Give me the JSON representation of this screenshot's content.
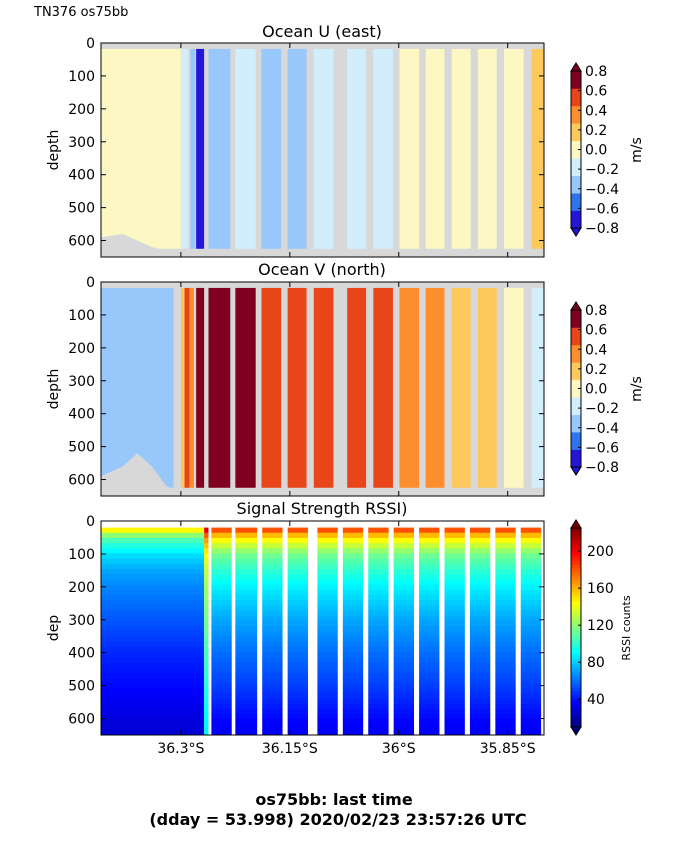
{
  "figure": {
    "corner_label": "TN376 os75bb",
    "footer_line1": "os75bb: last time",
    "footer_line2": "(dday = 53.998) 2020/02/23 23:57:26 UTC"
  },
  "chart_data": [
    {
      "type": "heatmap",
      "title": "Ocean U (east)",
      "ylabel": "depth",
      "ylim": [
        650,
        0
      ],
      "yticks": [
        0,
        100,
        200,
        300,
        400,
        500,
        600
      ],
      "ytick_labels": [
        "0",
        "100",
        "200",
        "300",
        "400",
        "500",
        "600"
      ],
      "xlim": [
        36.41,
        35.8
      ],
      "xticks": [
        36.3,
        36.15,
        36.0,
        35.85
      ],
      "xtick_labels": [],
      "colorbar": {
        "label": "m/s",
        "ticks": [
          0.8,
          0.6,
          0.4,
          0.2,
          0.0,
          -0.2,
          -0.4,
          -0.6,
          -0.8
        ],
        "tick_labels": [
          "0.8",
          "0.6",
          "0.4",
          "0.2",
          "0.0",
          "−0.2",
          "−0.4",
          "−0.6",
          "−0.8"
        ],
        "range": [
          -0.8,
          0.8
        ],
        "levels": [
          "#2415d8",
          "#2f74ef",
          "#98c8fb",
          "#d2eefd",
          "#fdf7c4",
          "#fdc95c",
          "#fc8e2e",
          "#e8451a",
          "#800020"
        ]
      },
      "columns": [
        {
          "lat_start": 36.41,
          "lat_end": 36.3,
          "value": 0.08
        },
        {
          "lat_start": 36.3,
          "lat_end": 36.29,
          "value": -0.12
        },
        {
          "lat_start": 36.287,
          "lat_end": 36.28,
          "value": -0.35
        },
        {
          "lat_start": 36.279,
          "lat_end": 36.268,
          "value": -0.75
        },
        {
          "lat_start": 36.262,
          "lat_end": 36.232,
          "value": -0.48
        },
        {
          "lat_start": 36.225,
          "lat_end": 36.197,
          "value": -0.3
        },
        {
          "lat_start": 36.189,
          "lat_end": 36.162,
          "value": -0.32
        },
        {
          "lat_start": 36.153,
          "lat_end": 36.127,
          "value": -0.33
        },
        {
          "lat_start": 36.117,
          "lat_end": 36.09,
          "value": -0.14
        },
        {
          "lat_start": 36.071,
          "lat_end": 36.045,
          "value": -0.13
        },
        {
          "lat_start": 36.035,
          "lat_end": 36.008,
          "value": -0.11
        },
        {
          "lat_start": 35.999,
          "lat_end": 35.972,
          "value": -0.09
        },
        {
          "lat_start": 35.963,
          "lat_end": 35.937,
          "value": -0.06
        },
        {
          "lat_start": 35.927,
          "lat_end": 35.901,
          "value": 0.05
        },
        {
          "lat_start": 35.891,
          "lat_end": 35.865,
          "value": 0.06
        },
        {
          "lat_start": 35.855,
          "lat_end": 35.828,
          "value": 0.08
        },
        {
          "lat_start": 35.817,
          "lat_end": 35.8,
          "value": 0.25
        }
      ]
    },
    {
      "type": "heatmap",
      "title": "Ocean V (north)",
      "ylabel": "depth",
      "ylim": [
        650,
        0
      ],
      "yticks": [
        0,
        100,
        200,
        300,
        400,
        500,
        600
      ],
      "ytick_labels": [
        "0",
        "100",
        "200",
        "300",
        "400",
        "500",
        "600"
      ],
      "xlim": [
        36.41,
        35.8
      ],
      "xticks": [
        36.3,
        36.15,
        36.0,
        35.85
      ],
      "xtick_labels": [],
      "colorbar": {
        "label": "m/s",
        "ticks": [
          0.8,
          0.6,
          0.4,
          0.2,
          0.0,
          -0.2,
          -0.4,
          -0.6,
          -0.8
        ],
        "tick_labels": [
          "0.8",
          "0.6",
          "0.4",
          "0.2",
          "0.0",
          "−0.2",
          "−0.4",
          "−0.6",
          "−0.8"
        ],
        "range": [
          -0.8,
          0.8
        ],
        "levels": [
          "#2415d8",
          "#2f74ef",
          "#98c8fb",
          "#d2eefd",
          "#fdf7c4",
          "#fdc95c",
          "#fc8e2e",
          "#e8451a",
          "#800020"
        ]
      },
      "columns": [
        {
          "lat_start": 36.41,
          "lat_end": 36.31,
          "value": -0.45
        },
        {
          "lat_start": 36.3,
          "lat_end": 36.295,
          "value": 0.2
        },
        {
          "lat_start": 36.295,
          "lat_end": 36.288,
          "value": 0.65
        },
        {
          "lat_start": 36.288,
          "lat_end": 36.282,
          "value": 0.3
        },
        {
          "lat_start": 36.279,
          "lat_end": 36.268,
          "value": 0.9
        },
        {
          "lat_start": 36.262,
          "lat_end": 36.232,
          "value": 0.7
        },
        {
          "lat_start": 36.225,
          "lat_end": 36.197,
          "value": 0.7
        },
        {
          "lat_start": 36.189,
          "lat_end": 36.162,
          "value": 0.62
        },
        {
          "lat_start": 36.153,
          "lat_end": 36.127,
          "value": 0.62
        },
        {
          "lat_start": 36.117,
          "lat_end": 36.09,
          "value": 0.62
        },
        {
          "lat_start": 36.071,
          "lat_end": 36.045,
          "value": 0.5
        },
        {
          "lat_start": 36.035,
          "lat_end": 36.008,
          "value": 0.52
        },
        {
          "lat_start": 35.999,
          "lat_end": 35.972,
          "value": 0.45
        },
        {
          "lat_start": 35.963,
          "lat_end": 35.937,
          "value": 0.35
        },
        {
          "lat_start": 35.927,
          "lat_end": 35.901,
          "value": 0.25
        },
        {
          "lat_start": 35.891,
          "lat_end": 35.865,
          "value": 0.1
        },
        {
          "lat_start": 35.855,
          "lat_end": 35.828,
          "value": -0.1
        },
        {
          "lat_start": 35.817,
          "lat_end": 35.8,
          "value": -0.12
        }
      ]
    },
    {
      "type": "heatmap",
      "title": "Signal Strength RSSI)",
      "ylabel": "dep",
      "ylim": [
        650,
        0
      ],
      "yticks": [
        0,
        100,
        200,
        300,
        400,
        500,
        600
      ],
      "ytick_labels": [
        "0",
        "100",
        "200",
        "300",
        "400",
        "500",
        "600"
      ],
      "xlim": [
        36.41,
        35.8
      ],
      "xticks": [
        36.3,
        36.15,
        36.0,
        35.85
      ],
      "xtick_labels": [
        "36.3°S",
        "36.15°S",
        "36°S",
        "35.85°S"
      ],
      "colorbar": {
        "label": "RSSI counts",
        "ticks": [
          200,
          160,
          120,
          80,
          40
        ],
        "tick_labels": [
          "200",
          "160",
          "120",
          "80",
          "40"
        ],
        "range": [
          10,
          225
        ],
        "colors": [
          "#00007f",
          "#0000ff",
          "#0080ff",
          "#00ffff",
          "#80ff80",
          "#ffff00",
          "#ff8000",
          "#ff0000",
          "#7f0000"
        ]
      },
      "profile": {
        "depth": [
          25,
          50,
          100,
          150,
          200,
          300,
          400,
          500,
          600,
          650
        ],
        "rssi": [
          185,
          150,
          115,
          100,
          88,
          72,
          60,
          50,
          38,
          34
        ]
      },
      "near_shore_profile": {
        "depth": [
          25,
          50,
          100,
          150,
          200,
          300,
          400,
          500,
          600,
          650
        ],
        "rssi": [
          150,
          110,
          85,
          72,
          65,
          55,
          45,
          38,
          30,
          28
        ]
      },
      "columns": [
        {
          "lat_start": 36.41,
          "lat_end": 36.268,
          "kind": "near_shore"
        },
        {
          "lat_start": 36.268,
          "lat_end": 36.262,
          "kind": "edge"
        },
        {
          "lat_start": 36.258,
          "lat_end": 36.23,
          "kind": "offshore"
        },
        {
          "lat_start": 36.225,
          "lat_end": 36.195,
          "kind": "offshore"
        },
        {
          "lat_start": 36.188,
          "lat_end": 36.16,
          "kind": "offshore"
        },
        {
          "lat_start": 36.153,
          "lat_end": 36.125,
          "kind": "offshore"
        },
        {
          "lat_start": 36.112,
          "lat_end": 36.084,
          "kind": "offshore"
        },
        {
          "lat_start": 36.077,
          "lat_end": 36.049,
          "kind": "offshore"
        },
        {
          "lat_start": 36.042,
          "lat_end": 36.014,
          "kind": "offshore"
        },
        {
          "lat_start": 36.007,
          "lat_end": 35.979,
          "kind": "offshore"
        },
        {
          "lat_start": 35.972,
          "lat_end": 35.944,
          "kind": "offshore"
        },
        {
          "lat_start": 35.937,
          "lat_end": 35.909,
          "kind": "offshore"
        },
        {
          "lat_start": 35.902,
          "lat_end": 35.874,
          "kind": "offshore"
        },
        {
          "lat_start": 35.867,
          "lat_end": 35.839,
          "kind": "offshore"
        },
        {
          "lat_start": 35.832,
          "lat_end": 35.804,
          "kind": "offshore"
        }
      ]
    }
  ]
}
